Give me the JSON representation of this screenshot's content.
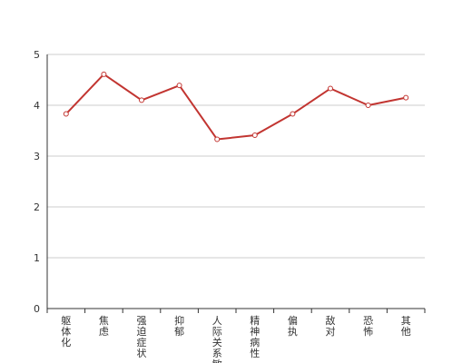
{
  "chart_data": {
    "type": "line",
    "categories": [
      "躯体化",
      "焦虑",
      "强迫症状",
      "抑郁",
      "人际关系敏感",
      "精神病性",
      "偏执",
      "敌对",
      "恐怖",
      "其他"
    ],
    "series": [
      {
        "values": [
          3.83,
          4.61,
          4.1,
          4.39,
          3.33,
          3.41,
          3.83,
          4.33,
          4.0,
          4.15
        ]
      }
    ],
    "ylim": [
      0,
      5
    ],
    "yticks": [
      0,
      1,
      2,
      3,
      4,
      5
    ],
    "grid": true,
    "line_color": "#c23531",
    "marker_fill": "#ffffff"
  }
}
